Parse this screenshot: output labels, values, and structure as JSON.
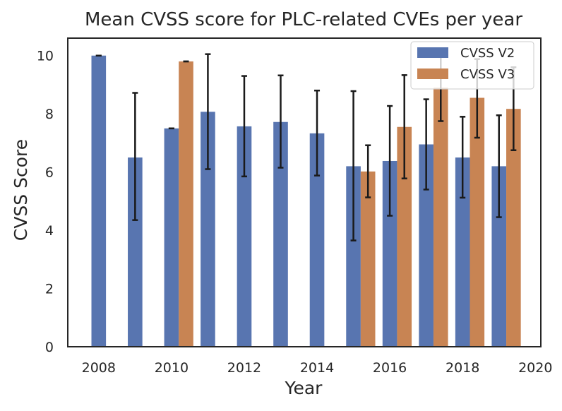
{
  "chart_data": {
    "type": "bar",
    "title": "Mean CVSS score for PLC-related CVEs per year",
    "xlabel": "Year",
    "ylabel": "CVSS Score",
    "xlim": [
      2007.15,
      2020.15
    ],
    "ylim": [
      0,
      10.6
    ],
    "xticks": [
      2008,
      2010,
      2012,
      2014,
      2016,
      2018,
      2020
    ],
    "yticks": [
      0,
      2,
      4,
      6,
      8,
      10
    ],
    "grid": false,
    "legend_position": "top-right",
    "bar_width": 0.4,
    "series": [
      {
        "name": "CVSS V2",
        "color": "#5875b0",
        "offset": 0,
        "points": [
          {
            "x": 2008,
            "y": 10.0,
            "err_low": 10.0,
            "err_high": 10.0
          },
          {
            "x": 2009,
            "y": 6.5,
            "err_low": 4.35,
            "err_high": 8.72
          },
          {
            "x": 2010,
            "y": 7.5,
            "err_low": 7.5,
            "err_high": 7.5
          },
          {
            "x": 2011,
            "y": 8.07,
            "err_low": 6.1,
            "err_high": 10.05
          },
          {
            "x": 2012,
            "y": 7.57,
            "err_low": 5.85,
            "err_high": 9.3
          },
          {
            "x": 2013,
            "y": 7.72,
            "err_low": 6.15,
            "err_high": 9.32
          },
          {
            "x": 2014,
            "y": 7.33,
            "err_low": 5.88,
            "err_high": 8.8
          },
          {
            "x": 2015,
            "y": 6.2,
            "err_low": 3.65,
            "err_high": 8.78
          },
          {
            "x": 2016,
            "y": 6.38,
            "err_low": 4.5,
            "err_high": 8.27
          },
          {
            "x": 2017,
            "y": 6.95,
            "err_low": 5.4,
            "err_high": 8.5
          },
          {
            "x": 2018,
            "y": 6.5,
            "err_low": 5.12,
            "err_high": 7.9
          },
          {
            "x": 2019,
            "y": 6.2,
            "err_low": 4.45,
            "err_high": 7.95
          }
        ]
      },
      {
        "name": "CVSS V3",
        "color": "#c88453",
        "offset": 0.4,
        "points": [
          {
            "x": 2010,
            "y": 9.8,
            "err_low": 9.8,
            "err_high": 9.8
          },
          {
            "x": 2015,
            "y": 6.02,
            "err_low": 5.13,
            "err_high": 6.92
          },
          {
            "x": 2016,
            "y": 7.55,
            "err_low": 5.78,
            "err_high": 9.33
          },
          {
            "x": 2017,
            "y": 8.9,
            "err_low": 7.75,
            "err_high": 9.95
          },
          {
            "x": 2018,
            "y": 8.55,
            "err_low": 7.18,
            "err_high": 9.88
          },
          {
            "x": 2019,
            "y": 8.17,
            "err_low": 6.75,
            "err_high": 9.6
          }
        ]
      }
    ]
  }
}
